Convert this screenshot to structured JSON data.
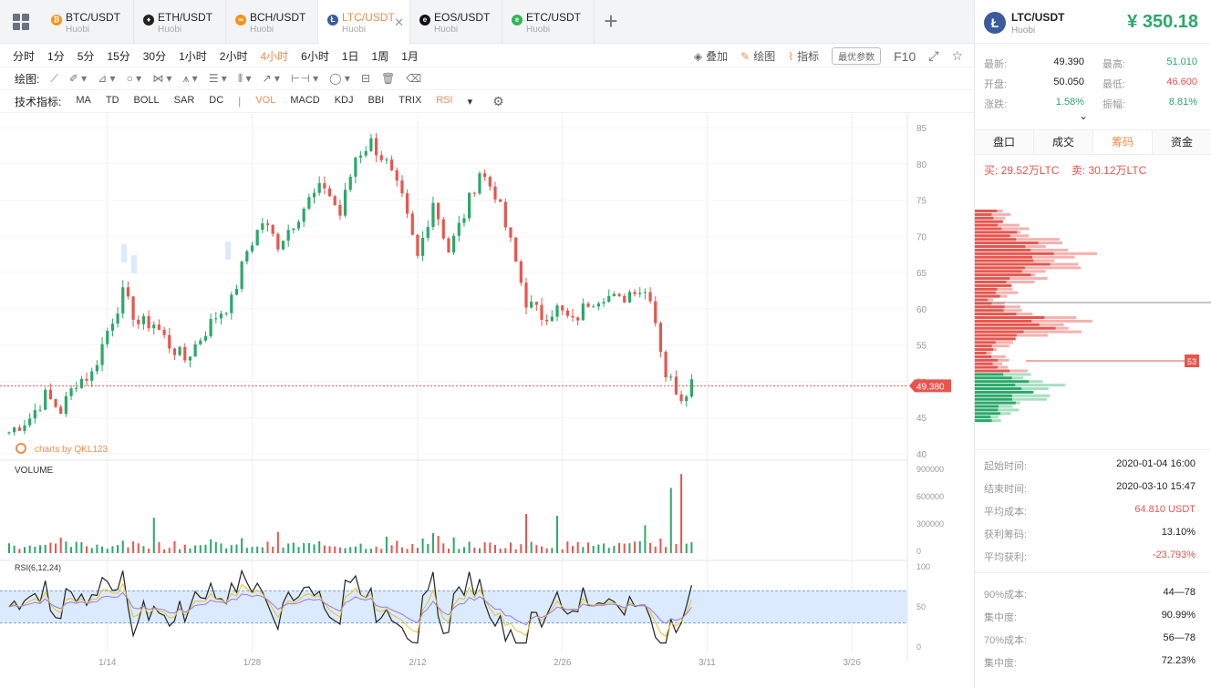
{
  "tabs": [
    {
      "pair": "BTC/USDT",
      "exchange": "Huobi",
      "icon": "btc-icon",
      "color": "#f7931a",
      "glyph": "₿"
    },
    {
      "pair": "ETH/USDT",
      "exchange": "Huobi",
      "icon": "eth-icon",
      "color": "#222222",
      "glyph": "♦"
    },
    {
      "pair": "BCH/USDT",
      "exchange": "Huobi",
      "icon": "bch-icon",
      "color": "#f7931a",
      "glyph": "∞"
    },
    {
      "pair": "LTC/USDT",
      "exchange": "Huobi",
      "icon": "ltc-icon",
      "color": "#3b5b9d",
      "glyph": "Ł",
      "active": true
    },
    {
      "pair": "EOS/USDT",
      "exchange": "Huobi",
      "icon": "eos-icon",
      "color": "#111111",
      "glyph": "e"
    },
    {
      "pair": "ETC/USDT",
      "exchange": "Huobi",
      "icon": "etc-icon",
      "color": "#33b554",
      "glyph": "e"
    }
  ],
  "timeframes": [
    "分时",
    "1分",
    "5分",
    "15分",
    "30分",
    "1小时",
    "2小时",
    "4小时",
    "6小时",
    "1日",
    "1周",
    "1月"
  ],
  "active_timeframe": "4小时",
  "right_tools": {
    "overlay": "叠加",
    "draw": "绘图",
    "indicator": "指标",
    "best_params": "最优参数",
    "f10": "F10"
  },
  "draw_label": "绘图:",
  "indicator_label": "技术指标:",
  "indicators": [
    "MA",
    "TD",
    "BOLL",
    "SAR",
    "DC",
    "|",
    "VOL",
    "MACD",
    "KDJ",
    "BBI",
    "TRIX",
    "RSI"
  ],
  "active_indicators": [
    "VOL",
    "RSI"
  ],
  "chart": {
    "watermark": "charts by QKL123",
    "volume_label": "VOLUME",
    "rsi_label": "RSI(6,12,24)",
    "last_price": "49.380",
    "dist_marker": "53"
  },
  "chart_data": {
    "type": "candlestick",
    "x_ticks": [
      "1/14",
      "1/28",
      "2/12",
      "2/26",
      "3/11",
      "3/26"
    ],
    "price_ticks": [
      40,
      45,
      50,
      55,
      60,
      65,
      70,
      75,
      80,
      85
    ],
    "price_range": [
      40,
      85
    ],
    "volume_ticks": [
      "900000",
      "600000",
      "300000",
      "0"
    ],
    "volume_range": [
      0,
      900000
    ],
    "rsi_ticks": [
      100,
      50,
      0
    ],
    "rsi_band": [
      30,
      70
    ],
    "last_price": 49.38,
    "close_path": [
      [
        0,
        43
      ],
      [
        4,
        45
      ],
      [
        7,
        48
      ],
      [
        10,
        46
      ],
      [
        13,
        50
      ],
      [
        16,
        51
      ],
      [
        19,
        57
      ],
      [
        22,
        62
      ],
      [
        25,
        58
      ],
      [
        28,
        58
      ],
      [
        31,
        55
      ],
      [
        34,
        53
      ],
      [
        37,
        56
      ],
      [
        40,
        59
      ],
      [
        43,
        61
      ],
      [
        46,
        68
      ],
      [
        49,
        72
      ],
      [
        52,
        69
      ],
      [
        55,
        72
      ],
      [
        58,
        75
      ],
      [
        61,
        77
      ],
      [
        64,
        73
      ],
      [
        67,
        81
      ],
      [
        70,
        83
      ],
      [
        73,
        80
      ],
      [
        76,
        75
      ],
      [
        79,
        67
      ],
      [
        82,
        75
      ],
      [
        85,
        68
      ],
      [
        88,
        73
      ],
      [
        91,
        79
      ],
      [
        94,
        76
      ],
      [
        97,
        69
      ],
      [
        100,
        61
      ],
      [
        103,
        59
      ],
      [
        106,
        60
      ],
      [
        109,
        58
      ],
      [
        112,
        61
      ],
      [
        115,
        62
      ],
      [
        118,
        61
      ],
      [
        121,
        63
      ],
      [
        124,
        62
      ],
      [
        127,
        51
      ],
      [
        130,
        48
      ],
      [
        132,
        50
      ]
    ],
    "volume_spikes": [
      [
        28,
        380000
      ],
      [
        100,
        420000
      ],
      [
        106,
        400000
      ],
      [
        123,
        300000
      ],
      [
        128,
        700000
      ],
      [
        130,
        850000
      ]
    ]
  },
  "panel": {
    "pair": "LTC/USDT",
    "exchange": "Huobi",
    "price": "¥ 350.18",
    "stats": [
      {
        "k1": "最新:",
        "v1": "49.390",
        "k2": "最高:",
        "v2": "51.010",
        "c2": "up"
      },
      {
        "k1": "开盘:",
        "v1": "50.050",
        "k2": "最低:",
        "v2": "46.600",
        "c2": "dn"
      },
      {
        "k1": "涨跌:",
        "v1": "1.58%",
        "k2": "振幅:",
        "v2": "8.81%",
        "c1": "up",
        "c2": "up"
      }
    ],
    "tabs": [
      "盘口",
      "成交",
      "筹码",
      "资金"
    ],
    "active_tab": "筹码",
    "buy": "买: 29.52万LTC",
    "sell": "卖: 30.12万LTC",
    "info": [
      {
        "k": "起始时间:",
        "v": "2020-01-04 16:00"
      },
      {
        "k": "结束时间:",
        "v": "2020-03-10 15:47"
      },
      {
        "k": "平均成本:",
        "v": "64.810 USDT",
        "c": "dn"
      },
      {
        "k": "获利筹码:",
        "v": "13.10%"
      },
      {
        "k": "平均获利:",
        "v": "-23.793%",
        "c": "dn"
      }
    ],
    "concentration": [
      {
        "k": "90%成本:",
        "v": "44—78"
      },
      {
        "k": "集中度:",
        "v": "90.99%"
      },
      {
        "k": "70%成本:",
        "v": "56—78"
      },
      {
        "k": "集中度:",
        "v": "72.23%"
      }
    ]
  },
  "colors": {
    "up": "#2aa86a",
    "down": "#e8554e",
    "accent": "#f08c4c"
  }
}
